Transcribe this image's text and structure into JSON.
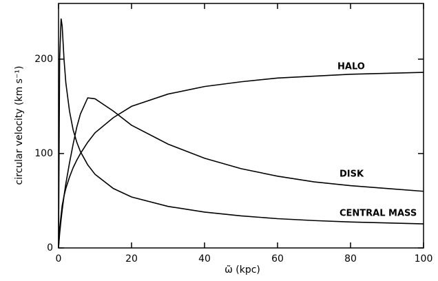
{
  "chart_data": {
    "type": "line",
    "x_label": "ω̃ (kpc)",
    "y_label": "circular velocity (km s⁻¹)",
    "x": [
      0,
      0.3,
      0.7,
      1,
      1.5,
      2,
      3,
      4,
      5,
      6,
      8,
      10,
      15,
      20,
      30,
      40,
      50,
      60,
      70,
      80,
      90,
      100
    ],
    "series": [
      {
        "name": "HALO",
        "color": "#000000",
        "values": [
          0,
          20,
          35,
          45,
          55,
          63,
          75,
          85,
          93,
          100,
          112,
          122,
          138,
          150,
          163,
          171,
          176,
          180,
          182,
          184,
          185,
          186
        ]
      },
      {
        "name": "DISK",
        "color": "#000000",
        "values": [
          0,
          15,
          30,
          40,
          55,
          68,
          90,
          110,
          128,
          142,
          159,
          158,
          145,
          130,
          110,
          95,
          84,
          76,
          70,
          66,
          63,
          60
        ]
      },
      {
        "name": "CENTRAL MASS",
        "color": "#000000",
        "values": [
          0,
          200,
          243,
          235,
          200,
          175,
          145,
          125,
          112,
          102,
          88,
          78,
          63,
          54,
          44,
          38,
          34,
          31,
          29,
          27.5,
          26.5,
          25.5
        ]
      }
    ],
    "xlim": [
      0,
      100
    ],
    "xticks": [
      0,
      20,
      40,
      60,
      80,
      100
    ],
    "ylim": [
      0,
      259
    ],
    "yticks": [
      0,
      100,
      200
    ],
    "grid": false
  }
}
